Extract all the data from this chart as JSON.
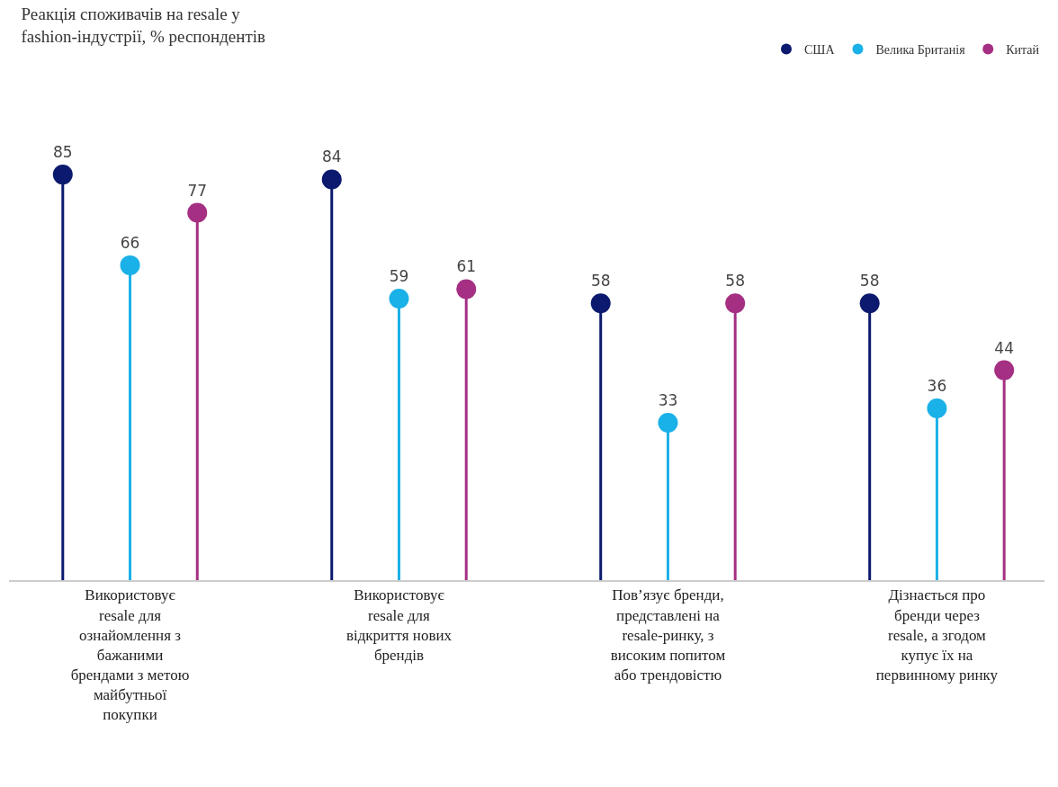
{
  "chart_data": {
    "type": "lollipop",
    "title": "Реакція споживачів на resale у fashion-індустрії, % респондентів",
    "categories": [
      "Використовує resale для ознайомлення з бажаними брендами з метою майбутньої покупки",
      "Використовує resale для відкриття нових брендів",
      "Пов’язує бренди, представлені на resale-ринку, з високим попитом або трендовістю",
      "Дізнається про бренди через resale, а згодом купує їх на первинному ринку"
    ],
    "series": [
      {
        "name": "США",
        "color": "#0b1a6e",
        "values": [
          85,
          84,
          58,
          58
        ]
      },
      {
        "name": "Велика Британія",
        "color": "#1ab0e8",
        "values": [
          66,
          59,
          33,
          36
        ]
      },
      {
        "name": "Китай",
        "color": "#a52f82",
        "values": [
          77,
          61,
          58,
          44
        ]
      }
    ],
    "data_labels": true,
    "legend": "top right",
    "tick_labels": "x",
    "marker": "circle"
  }
}
